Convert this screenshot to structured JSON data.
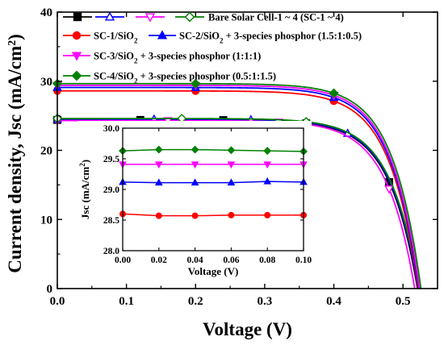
{
  "chart_data": [
    {
      "type": "line",
      "xlabel": "Voltage (V)",
      "ylabel_main": "Current density, Jsc (mA/cm",
      "ylabel_sup": "2",
      "ylabel_end": ")",
      "xlim": [
        0.0,
        0.55
      ],
      "ylim": [
        0,
        40
      ],
      "xticks": [
        0.0,
        0.1,
        0.2,
        0.3,
        0.4,
        0.5
      ],
      "xtick_labels": [
        "0.0",
        "0.1",
        "0.2",
        "0.3",
        "0.4",
        "0.5"
      ],
      "yticks": [
        0,
        10,
        20,
        30,
        40
      ],
      "ytick_labels": [
        "0",
        "10",
        "20",
        "30",
        "40"
      ],
      "legend_position": "top-left",
      "legend": {
        "bare_label": "Bare Solar Cell-1 ~ 4 (SC-1 ~ 4)",
        "sc1_main": "SC-1/SiO",
        "sc1_sub": "2",
        "sc2_main": "SC-2/SiO",
        "sc2_sub": "2",
        "sc2_rest": " + 3-species phosphor (1.5:1:0.5)",
        "sc3_main": "SC-3/SiO",
        "sc3_sub": "2",
        "sc3_rest": " + 3-species phosphor (1:1:1)",
        "sc4_main": "SC-4/SiO",
        "sc4_sub": "2",
        "sc4_rest": " + 3-species phosphor (0.5:1:1.5)"
      },
      "series": [
        {
          "name": "SC-1",
          "group": "bare",
          "color": "#000000",
          "marker": "square",
          "filled": true,
          "isc": 24.4,
          "voc": 0.521,
          "n": 1.6,
          "markers_x": [
            0.0,
            0.12,
            0.24,
            0.36,
            0.48
          ]
        },
        {
          "name": "SC-2",
          "group": "bare",
          "color": "#0000ff",
          "marker": "triangle-up",
          "filled": false,
          "isc": 24.5,
          "voc": 0.522,
          "n": 1.6,
          "markers_x": [
            0.0,
            0.14,
            0.28,
            0.42
          ]
        },
        {
          "name": "SC-3",
          "group": "bare",
          "color": "#ff00ff",
          "marker": "triangle-down",
          "filled": false,
          "isc": 24.3,
          "voc": 0.517,
          "n": 1.6,
          "markers_x": [
            0.0,
            0.16,
            0.32,
            0.48
          ]
        },
        {
          "name": "SC-4",
          "group": "bare",
          "color": "#008000",
          "marker": "diamond",
          "filled": false,
          "isc": 24.6,
          "voc": 0.523,
          "n": 1.6,
          "markers_x": [
            0.0,
            0.18,
            0.36
          ]
        },
        {
          "name": "SC-1/SiO2",
          "group": "coated",
          "color": "#ff0000",
          "marker": "circle",
          "filled": true,
          "isc": 28.6,
          "voc": 0.522,
          "n": 1.6,
          "markers_x": [
            0.0,
            0.2,
            0.4
          ]
        },
        {
          "name": "SC-2/SiO2 + 3-species phosphor (1.5:1:0.5)",
          "group": "coated",
          "color": "#0000ff",
          "marker": "triangle-up",
          "filled": true,
          "isc": 29.1,
          "voc": 0.523,
          "n": 1.6,
          "markers_x": [
            0.0,
            0.2,
            0.4
          ]
        },
        {
          "name": "SC-3/SiO2 + 3-species phosphor (1:1:1)",
          "group": "coated",
          "color": "#ff00ff",
          "marker": "triangle-down",
          "filled": true,
          "isc": 29.4,
          "voc": 0.524,
          "n": 1.6,
          "markers_x": [
            0.0,
            0.2,
            0.4
          ]
        },
        {
          "name": "SC-4/SiO2 + 3-species phosphor (0.5:1:1.5)",
          "group": "coated",
          "color": "#008000",
          "marker": "diamond",
          "filled": true,
          "isc": 29.65,
          "voc": 0.526,
          "n": 1.6,
          "markers_x": [
            0.0,
            0.2,
            0.4
          ]
        }
      ]
    },
    {
      "type": "line",
      "role": "inset",
      "xlabel": "Voltage (V)",
      "ylabel_main": "Jsc (mA/cm",
      "ylabel_sup": "2",
      "ylabel_end": ")",
      "xlim": [
        0.0,
        0.1
      ],
      "ylim": [
        28.0,
        30.0
      ],
      "xticks": [
        0.0,
        0.02,
        0.04,
        0.06,
        0.08,
        0.1
      ],
      "xtick_labels": [
        "0.00",
        "0.02",
        "0.04",
        "0.06",
        "0.08",
        "0.10"
      ],
      "yticks": [
        28.0,
        28.5,
        29.0,
        29.5,
        30.0
      ],
      "ytick_labels": [
        "28.0",
        "28.5",
        "29.0",
        "29.5",
        "30.0"
      ],
      "x": [
        0.0,
        0.02,
        0.04,
        0.06,
        0.08,
        0.1
      ],
      "series": [
        {
          "name": "SC-4/SiO2 + 3-species phosphor (0.5:1:1.5)",
          "color": "#008000",
          "marker": "diamond",
          "values": [
            29.63,
            29.65,
            29.65,
            29.64,
            29.63,
            29.62
          ]
        },
        {
          "name": "SC-3/SiO2 + 3-species phosphor (1:1:1)",
          "color": "#ff00ff",
          "marker": "triangle-down",
          "values": [
            29.41,
            29.41,
            29.41,
            29.41,
            29.41,
            29.41
          ]
        },
        {
          "name": "SC-2/SiO2 + 3-species phosphor (1.5:1:0.5)",
          "color": "#0000ff",
          "marker": "triangle-up",
          "values": [
            29.12,
            29.11,
            29.11,
            29.11,
            29.13,
            29.12
          ]
        },
        {
          "name": "SC-1/SiO2",
          "color": "#ff0000",
          "marker": "circle",
          "values": [
            28.6,
            28.57,
            28.57,
            28.58,
            28.58,
            28.58
          ]
        }
      ]
    }
  ]
}
